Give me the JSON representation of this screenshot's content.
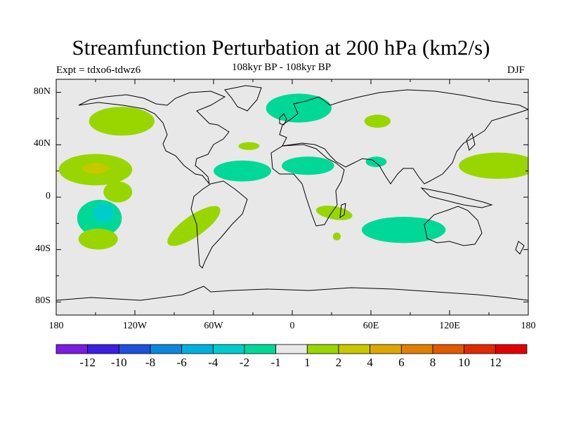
{
  "header": {
    "title": "Streamfunction Perturbation at 200 hPa (km2/s)",
    "left_label": "Expt = tdxo6-tdwz6",
    "center_label": "108kyr BP - 108kyr BP",
    "right_label": "DJF"
  },
  "map": {
    "projection": "cylindrical-equidistant",
    "lon_range": [
      -180,
      180
    ],
    "lat_range": [
      -90,
      90
    ],
    "background_color": "#e8e8e8",
    "coastline_color": "#000000",
    "y_ticks": [
      {
        "label": "80N",
        "lat": 80
      },
      {
        "label": "40N",
        "lat": 40
      },
      {
        "label": "0",
        "lat": 0
      },
      {
        "label": "40S",
        "lat": -40
      },
      {
        "label": "80S",
        "lat": -80
      }
    ],
    "x_ticks": [
      {
        "label": "180",
        "lon": -180
      },
      {
        "label": "120W",
        "lon": -120
      },
      {
        "label": "60W",
        "lon": -60
      },
      {
        "label": "0",
        "lon": 0
      },
      {
        "label": "60E",
        "lon": 60
      },
      {
        "label": "120E",
        "lon": 120
      },
      {
        "label": "180",
        "lon": 180
      }
    ],
    "anomaly_regions": [
      {
        "name": "north-pacific-positive",
        "lon": -130,
        "lat": 58,
        "rlon": 25,
        "rlat": 11,
        "level": 2,
        "color": "#99d600"
      },
      {
        "name": "central-pacific-positive",
        "lon": -150,
        "lat": 21,
        "rlon": 28,
        "rlat": 12,
        "level": 2,
        "color": "#99d600"
      },
      {
        "name": "central-pacific-core",
        "lon": -150,
        "lat": 22,
        "rlon": 10,
        "rlat": 4,
        "level": 4,
        "color": "#c8c800"
      },
      {
        "name": "tropical-pacific-small",
        "lon": -133,
        "lat": 4,
        "rlon": 11,
        "rlat": 8,
        "level": 2,
        "color": "#99d600"
      },
      {
        "name": "south-pacific-negative",
        "lon": -147,
        "lat": -16,
        "rlon": 17,
        "rlat": 14,
        "level": -2,
        "color": "#00d898"
      },
      {
        "name": "south-pacific-core",
        "lon": -144,
        "lat": -12,
        "rlon": 8,
        "rlat": 7,
        "level": -4,
        "color": "#00cccc"
      },
      {
        "name": "south-pacific-positive",
        "lon": -148,
        "lat": -32,
        "rlon": 15,
        "rlat": 8,
        "level": 2,
        "color": "#99d600"
      },
      {
        "name": "south-america-positive",
        "lon": -75,
        "lat": -22,
        "rlon": 24,
        "rlat": 8,
        "level": 2,
        "color": "#99d600",
        "rotate": -35
      },
      {
        "name": "tropical-atlantic-negative",
        "lon": -38,
        "lat": 20,
        "rlon": 22,
        "rlat": 8,
        "level": -2,
        "color": "#00d898"
      },
      {
        "name": "mid-atlantic-small",
        "lon": -33,
        "lat": 39,
        "rlon": 8,
        "rlat": 3,
        "level": 2,
        "color": "#99d600"
      },
      {
        "name": "europe-negative",
        "lon": 5,
        "lat": 68,
        "rlon": 25,
        "rlat": 11,
        "level": -2,
        "color": "#00d898"
      },
      {
        "name": "siberia-positive",
        "lon": 65,
        "lat": 58,
        "rlon": 10,
        "rlat": 5,
        "level": 2,
        "color": "#99d600"
      },
      {
        "name": "north-africa-negative",
        "lon": 12,
        "lat": 24,
        "rlon": 20,
        "rlat": 7,
        "level": -2,
        "color": "#00d898"
      },
      {
        "name": "arabian-sea-negative",
        "lon": 64,
        "lat": 27,
        "rlon": 8,
        "rlat": 4,
        "level": -2,
        "color": "#00d898"
      },
      {
        "name": "west-pacific-positive",
        "lon": 157,
        "lat": 24,
        "rlon": 30,
        "rlat": 10,
        "level": 2,
        "color": "#99d600"
      },
      {
        "name": "southern-africa-positive",
        "lon": 32,
        "lat": -12,
        "rlon": 14,
        "rlat": 5,
        "level": 2,
        "color": "#99d600",
        "rotate": 10
      },
      {
        "name": "south-indian-negative",
        "lon": 85,
        "lat": -25,
        "rlon": 32,
        "rlat": 10,
        "level": -2,
        "color": "#00d898"
      },
      {
        "name": "madagascar-small",
        "lon": 34,
        "lat": -30,
        "rlon": 3,
        "rlat": 3,
        "level": 2,
        "color": "#99d600"
      }
    ]
  },
  "colorbar": {
    "colors": [
      "#7a1ee0",
      "#3c1ee0",
      "#1e50dc",
      "#0a88dc",
      "#00b0dc",
      "#00cccc",
      "#00d898",
      "#e8e8e8",
      "#99d600",
      "#c8c800",
      "#dca800",
      "#e08000",
      "#e05a00",
      "#e02a00",
      "#e00000"
    ],
    "labels": [
      "-12",
      "-10",
      "-8",
      "-6",
      "-4",
      "-2",
      "-1",
      "1",
      "2",
      "4",
      "6",
      "8",
      "10",
      "12"
    ]
  }
}
